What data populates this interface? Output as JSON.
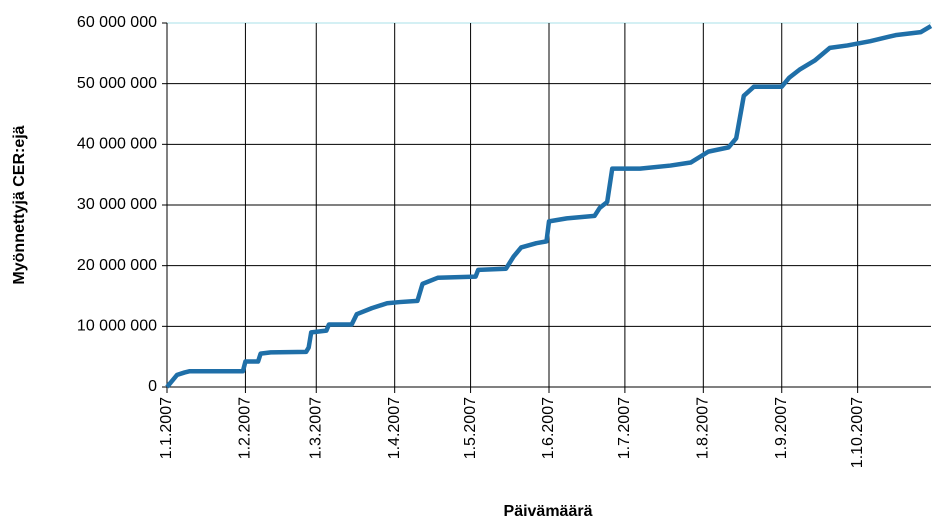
{
  "chart_data": {
    "type": "line",
    "x_label": "Päivämäärä",
    "y_label": "Myönnettyjä CER:ejä",
    "xlim": [
      "2007-01-01",
      "2007-10-30"
    ],
    "xticks": [
      {
        "value": "2007-01-01",
        "label": "1.1.2007"
      },
      {
        "value": "2007-02-01",
        "label": "1.2.2007"
      },
      {
        "value": "2007-03-01",
        "label": "1.3.2007"
      },
      {
        "value": "2007-04-01",
        "label": "1.4.2007"
      },
      {
        "value": "2007-05-01",
        "label": "1.5.2007"
      },
      {
        "value": "2007-06-01",
        "label": "1.6.2007"
      },
      {
        "value": "2007-07-01",
        "label": "1.7.2007"
      },
      {
        "value": "2007-08-01",
        "label": "1.8.2007"
      },
      {
        "value": "2007-09-01",
        "label": "1.9.2007"
      },
      {
        "value": "2007-10-01",
        "label": "1.10.2007"
      }
    ],
    "ylim": [
      0,
      60000000
    ],
    "yticks": [
      0,
      {
        "value": 10000000,
        "label": "10 000 000"
      },
      {
        "value": 20000000,
        "label": "20 000 000"
      },
      {
        "value": 30000000,
        "label": "30 000 000"
      },
      {
        "value": 40000000,
        "label": "40 000 000"
      },
      {
        "value": 50000000,
        "label": "50 000 000"
      },
      {
        "value": 60000000,
        "label": "60 000 000"
      }
    ],
    "grid": true,
    "x": [
      "2007-01-01",
      "2007-01-03",
      "2007-01-05",
      "2007-01-08",
      "2007-01-10",
      "2007-01-31",
      "2007-02-01",
      "2007-02-06",
      "2007-02-07",
      "2007-02-11",
      "2007-02-25",
      "2007-02-26",
      "2007-02-27",
      "2007-03-05",
      "2007-03-06",
      "2007-03-15",
      "2007-03-17",
      "2007-03-23",
      "2007-03-29",
      "2007-04-03",
      "2007-04-10",
      "2007-04-12",
      "2007-04-18",
      "2007-05-03",
      "2007-05-04",
      "2007-05-15",
      "2007-05-18",
      "2007-05-21",
      "2007-05-27",
      "2007-05-31",
      "2007-06-01",
      "2007-06-08",
      "2007-06-19",
      "2007-06-21",
      "2007-06-24",
      "2007-06-26",
      "2007-07-07",
      "2007-07-19",
      "2007-07-27",
      "2007-08-03",
      "2007-08-11",
      "2007-08-14",
      "2007-08-17",
      "2007-08-21",
      "2007-09-01",
      "2007-09-04",
      "2007-09-08",
      "2007-09-14",
      "2007-09-20",
      "2007-09-27",
      "2007-10-06",
      "2007-10-16",
      "2007-10-26",
      "2007-10-30"
    ],
    "series": [
      {
        "color": "#1f6fa8",
        "values": [
          0,
          1000000,
          2000000,
          2400000,
          2600000,
          2600000,
          4200000,
          4200000,
          5500000,
          5700000,
          5800000,
          6500000,
          9000000,
          9300000,
          10300000,
          10300000,
          12000000,
          13000000,
          13800000,
          14000000,
          14200000,
          17000000,
          18000000,
          18200000,
          19300000,
          19500000,
          21500000,
          23000000,
          23700000,
          24000000,
          27300000,
          27800000,
          28200000,
          29500000,
          30500000,
          36000000,
          36000000,
          36500000,
          37000000,
          38800000,
          39500000,
          41000000,
          48000000,
          49500000,
          49500000,
          51000000,
          52300000,
          53800000,
          55900000,
          56300000,
          57000000,
          58000000,
          58500000,
          59500000
        ]
      }
    ]
  }
}
